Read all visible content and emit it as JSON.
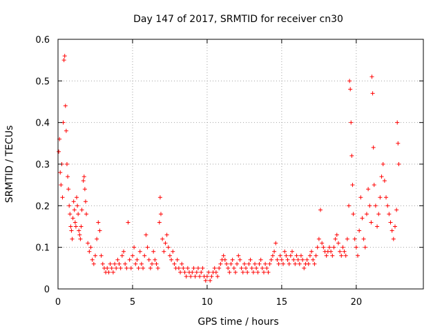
{
  "chart_data": {
    "type": "scatter",
    "title": "Day 147 of 2017, SRMTID for receiver cn30",
    "xlabel": "GPS time / hours",
    "ylabel": "SRMTID / TECUs",
    "xlim": [
      0,
      24.5
    ],
    "ylim": [
      0,
      0.6
    ],
    "x_ticks": [
      0,
      5,
      10,
      15,
      20
    ],
    "y_ticks": [
      0,
      0.1,
      0.2,
      0.3,
      0.4,
      0.5,
      0.6
    ],
    "x_tick_labels": [
      "0",
      "5",
      "10",
      "15",
      "20"
    ],
    "y_tick_labels": [
      "0",
      "0.1",
      "0.2",
      "0.3",
      "0.4",
      "0.5",
      "0.6"
    ],
    "grid": true,
    "marker": "plus",
    "color": "#ff0000",
    "series": [
      {
        "name": "SRMTID",
        "points": [
          [
            0.05,
            0.33
          ],
          [
            0.1,
            0.36
          ],
          [
            0.15,
            0.28
          ],
          [
            0.2,
            0.25
          ],
          [
            0.25,
            0.3
          ],
          [
            0.3,
            0.22
          ],
          [
            0.35,
            0.4
          ],
          [
            0.4,
            0.55
          ],
          [
            0.45,
            0.56
          ],
          [
            0.5,
            0.44
          ],
          [
            0.55,
            0.38
          ],
          [
            0.6,
            0.3
          ],
          [
            0.65,
            0.27
          ],
          [
            0.7,
            0.24
          ],
          [
            0.75,
            0.2
          ],
          [
            0.8,
            0.18
          ],
          [
            0.85,
            0.15
          ],
          [
            0.9,
            0.14
          ],
          [
            0.95,
            0.12
          ],
          [
            1.0,
            0.17
          ],
          [
            1.05,
            0.21
          ],
          [
            1.1,
            0.19
          ],
          [
            1.15,
            0.16
          ],
          [
            1.2,
            0.15
          ],
          [
            1.25,
            0.22
          ],
          [
            1.3,
            0.2
          ],
          [
            1.35,
            0.18
          ],
          [
            1.4,
            0.14
          ],
          [
            1.45,
            0.13
          ],
          [
            1.5,
            0.12
          ],
          [
            1.55,
            0.15
          ],
          [
            1.6,
            0.19
          ],
          [
            1.7,
            0.26
          ],
          [
            1.75,
            0.27
          ],
          [
            1.8,
            0.24
          ],
          [
            1.85,
            0.21
          ],
          [
            1.9,
            0.18
          ],
          [
            2.0,
            0.11
          ],
          [
            2.1,
            0.09
          ],
          [
            2.2,
            0.1
          ],
          [
            2.3,
            0.07
          ],
          [
            2.4,
            0.06
          ],
          [
            2.5,
            0.08
          ],
          [
            2.6,
            0.12
          ],
          [
            2.7,
            0.16
          ],
          [
            2.8,
            0.14
          ],
          [
            2.9,
            0.08
          ],
          [
            3.0,
            0.06
          ],
          [
            3.1,
            0.05
          ],
          [
            3.2,
            0.04
          ],
          [
            3.3,
            0.05
          ],
          [
            3.4,
            0.04
          ],
          [
            3.5,
            0.06
          ],
          [
            3.6,
            0.05
          ],
          [
            3.7,
            0.04
          ],
          [
            3.8,
            0.06
          ],
          [
            3.9,
            0.05
          ],
          [
            4.0,
            0.07
          ],
          [
            4.1,
            0.06
          ],
          [
            4.2,
            0.05
          ],
          [
            4.3,
            0.08
          ],
          [
            4.4,
            0.09
          ],
          [
            4.5,
            0.06
          ],
          [
            4.6,
            0.05
          ],
          [
            4.7,
            0.16
          ],
          [
            4.8,
            0.07
          ],
          [
            4.9,
            0.05
          ],
          [
            5.0,
            0.08
          ],
          [
            5.1,
            0.1
          ],
          [
            5.2,
            0.06
          ],
          [
            5.3,
            0.07
          ],
          [
            5.4,
            0.05
          ],
          [
            5.5,
            0.09
          ],
          [
            5.6,
            0.06
          ],
          [
            5.7,
            0.05
          ],
          [
            5.8,
            0.08
          ],
          [
            5.9,
            0.13
          ],
          [
            6.0,
            0.1
          ],
          [
            6.1,
            0.07
          ],
          [
            6.2,
            0.05
          ],
          [
            6.3,
            0.06
          ],
          [
            6.4,
            0.09
          ],
          [
            6.5,
            0.07
          ],
          [
            6.6,
            0.06
          ],
          [
            6.7,
            0.05
          ],
          [
            6.8,
            0.16
          ],
          [
            6.85,
            0.22
          ],
          [
            6.9,
            0.18
          ],
          [
            7.0,
            0.12
          ],
          [
            7.1,
            0.09
          ],
          [
            7.2,
            0.11
          ],
          [
            7.3,
            0.13
          ],
          [
            7.4,
            0.1
          ],
          [
            7.5,
            0.08
          ],
          [
            7.6,
            0.07
          ],
          [
            7.7,
            0.09
          ],
          [
            7.8,
            0.06
          ],
          [
            7.9,
            0.05
          ],
          [
            8.0,
            0.07
          ],
          [
            8.1,
            0.05
          ],
          [
            8.2,
            0.04
          ],
          [
            8.3,
            0.06
          ],
          [
            8.4,
            0.05
          ],
          [
            8.5,
            0.04
          ],
          [
            8.6,
            0.03
          ],
          [
            8.7,
            0.05
          ],
          [
            8.8,
            0.04
          ],
          [
            8.9,
            0.03
          ],
          [
            9.0,
            0.04
          ],
          [
            9.1,
            0.05
          ],
          [
            9.2,
            0.03
          ],
          [
            9.3,
            0.04
          ],
          [
            9.4,
            0.05
          ],
          [
            9.5,
            0.03
          ],
          [
            9.6,
            0.04
          ],
          [
            9.7,
            0.05
          ],
          [
            9.8,
            0.03
          ],
          [
            9.9,
            0.02
          ],
          [
            10.0,
            0.03
          ],
          [
            10.1,
            0.04
          ],
          [
            10.2,
            0.02
          ],
          [
            10.3,
            0.03
          ],
          [
            10.4,
            0.04
          ],
          [
            10.5,
            0.05
          ],
          [
            10.6,
            0.04
          ],
          [
            10.7,
            0.03
          ],
          [
            10.8,
            0.05
          ],
          [
            10.9,
            0.06
          ],
          [
            11.0,
            0.07
          ],
          [
            11.1,
            0.08
          ],
          [
            11.2,
            0.07
          ],
          [
            11.3,
            0.06
          ],
          [
            11.4,
            0.05
          ],
          [
            11.5,
            0.04
          ],
          [
            11.6,
            0.06
          ],
          [
            11.7,
            0.07
          ],
          [
            11.8,
            0.05
          ],
          [
            11.9,
            0.04
          ],
          [
            12.0,
            0.06
          ],
          [
            12.1,
            0.08
          ],
          [
            12.2,
            0.07
          ],
          [
            12.3,
            0.05
          ],
          [
            12.4,
            0.04
          ],
          [
            12.5,
            0.06
          ],
          [
            12.6,
            0.05
          ],
          [
            12.7,
            0.04
          ],
          [
            12.8,
            0.06
          ],
          [
            12.9,
            0.07
          ],
          [
            13.0,
            0.05
          ],
          [
            13.1,
            0.04
          ],
          [
            13.2,
            0.06
          ],
          [
            13.3,
            0.05
          ],
          [
            13.4,
            0.04
          ],
          [
            13.5,
            0.06
          ],
          [
            13.6,
            0.07
          ],
          [
            13.7,
            0.05
          ],
          [
            13.8,
            0.04
          ],
          [
            13.9,
            0.06
          ],
          [
            14.0,
            0.05
          ],
          [
            14.1,
            0.04
          ],
          [
            14.2,
            0.06
          ],
          [
            14.3,
            0.07
          ],
          [
            14.4,
            0.08
          ],
          [
            14.5,
            0.09
          ],
          [
            14.6,
            0.11
          ],
          [
            14.7,
            0.07
          ],
          [
            14.8,
            0.06
          ],
          [
            14.9,
            0.08
          ],
          [
            15.0,
            0.07
          ],
          [
            15.1,
            0.06
          ],
          [
            15.2,
            0.09
          ],
          [
            15.3,
            0.08
          ],
          [
            15.4,
            0.07
          ],
          [
            15.5,
            0.06
          ],
          [
            15.6,
            0.08
          ],
          [
            15.7,
            0.09
          ],
          [
            15.8,
            0.07
          ],
          [
            15.9,
            0.06
          ],
          [
            16.0,
            0.08
          ],
          [
            16.1,
            0.07
          ],
          [
            16.2,
            0.06
          ],
          [
            16.3,
            0.08
          ],
          [
            16.4,
            0.07
          ],
          [
            16.5,
            0.05
          ],
          [
            16.6,
            0.06
          ],
          [
            16.7,
            0.07
          ],
          [
            16.8,
            0.06
          ],
          [
            16.9,
            0.08
          ],
          [
            17.0,
            0.09
          ],
          [
            17.1,
            0.07
          ],
          [
            17.2,
            0.06
          ],
          [
            17.3,
            0.08
          ],
          [
            17.4,
            0.1
          ],
          [
            17.5,
            0.12
          ],
          [
            17.6,
            0.19
          ],
          [
            17.7,
            0.11
          ],
          [
            17.8,
            0.1
          ],
          [
            17.9,
            0.09
          ],
          [
            18.0,
            0.08
          ],
          [
            18.1,
            0.09
          ],
          [
            18.2,
            0.1
          ],
          [
            18.3,
            0.09
          ],
          [
            18.4,
            0.08
          ],
          [
            18.5,
            0.1
          ],
          [
            18.6,
            0.12
          ],
          [
            18.7,
            0.13
          ],
          [
            18.8,
            0.11
          ],
          [
            18.9,
            0.09
          ],
          [
            19.0,
            0.08
          ],
          [
            19.1,
            0.1
          ],
          [
            19.2,
            0.09
          ],
          [
            19.3,
            0.08
          ],
          [
            19.4,
            0.12
          ],
          [
            19.5,
            0.2
          ],
          [
            19.55,
            0.5
          ],
          [
            19.6,
            0.48
          ],
          [
            19.65,
            0.4
          ],
          [
            19.7,
            0.32
          ],
          [
            19.75,
            0.25
          ],
          [
            19.8,
            0.18
          ],
          [
            19.9,
            0.12
          ],
          [
            20.0,
            0.1
          ],
          [
            20.1,
            0.08
          ],
          [
            20.2,
            0.14
          ],
          [
            20.3,
            0.22
          ],
          [
            20.4,
            0.17
          ],
          [
            20.5,
            0.12
          ],
          [
            20.6,
            0.1
          ],
          [
            20.7,
            0.18
          ],
          [
            20.8,
            0.24
          ],
          [
            20.9,
            0.2
          ],
          [
            21.0,
            0.16
          ],
          [
            21.05,
            0.51
          ],
          [
            21.1,
            0.47
          ],
          [
            21.15,
            0.34
          ],
          [
            21.2,
            0.25
          ],
          [
            21.3,
            0.2
          ],
          [
            21.4,
            0.15
          ],
          [
            21.5,
            0.18
          ],
          [
            21.6,
            0.22
          ],
          [
            21.7,
            0.27
          ],
          [
            21.8,
            0.3
          ],
          [
            21.9,
            0.26
          ],
          [
            22.0,
            0.22
          ],
          [
            22.1,
            0.2
          ],
          [
            22.2,
            0.18
          ],
          [
            22.3,
            0.16
          ],
          [
            22.4,
            0.14
          ],
          [
            22.5,
            0.12
          ],
          [
            22.6,
            0.15
          ],
          [
            22.7,
            0.19
          ],
          [
            22.75,
            0.4
          ],
          [
            22.8,
            0.35
          ],
          [
            22.85,
            0.3
          ]
        ]
      }
    ]
  }
}
